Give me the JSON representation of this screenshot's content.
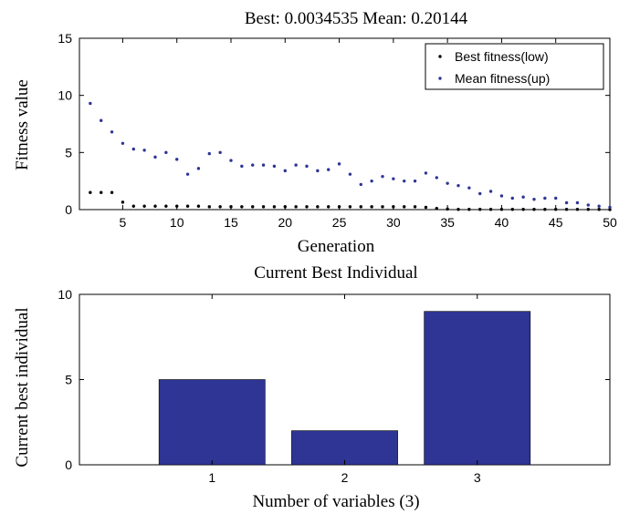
{
  "chart_data": [
    {
      "type": "scatter",
      "title": "Best: 0.0034535 Mean: 0.20144",
      "xlabel": "Generation",
      "ylabel": "Fitness value",
      "xlim": [
        1,
        50
      ],
      "ylim": [
        0,
        15
      ],
      "xticks": [
        5,
        10,
        15,
        20,
        25,
        30,
        35,
        40,
        45,
        50
      ],
      "yticks": [
        0,
        5,
        10,
        15
      ],
      "legend_position": "top-right",
      "grid": false,
      "series": [
        {
          "name": "Best fitness(low)",
          "color": "#000000",
          "x": [
            2,
            3,
            4,
            5,
            6,
            7,
            8,
            9,
            10,
            11,
            12,
            13,
            14,
            15,
            16,
            17,
            18,
            19,
            20,
            21,
            22,
            23,
            24,
            25,
            26,
            27,
            28,
            29,
            30,
            31,
            32,
            33,
            34,
            35,
            36,
            37,
            38,
            39,
            40,
            41,
            42,
            43,
            44,
            45,
            46,
            47,
            48,
            49,
            50
          ],
          "y": [
            1.5,
            1.5,
            1.5,
            0.65,
            0.3,
            0.3,
            0.3,
            0.3,
            0.3,
            0.3,
            0.3,
            0.25,
            0.25,
            0.25,
            0.25,
            0.25,
            0.25,
            0.25,
            0.25,
            0.25,
            0.25,
            0.25,
            0.25,
            0.25,
            0.25,
            0.25,
            0.25,
            0.25,
            0.25,
            0.25,
            0.25,
            0.2,
            0.1,
            0.05,
            0.02,
            0.02,
            0.02,
            0.02,
            0.02,
            0.02,
            0.02,
            0.02,
            0.02,
            0.02,
            0.02,
            0.02,
            0.02,
            0.02,
            0.0034535
          ]
        },
        {
          "name": "Mean fitness(up)",
          "color": "#2e3594",
          "x": [
            2,
            3,
            4,
            5,
            6,
            7,
            8,
            9,
            10,
            11,
            12,
            13,
            14,
            15,
            16,
            17,
            18,
            19,
            20,
            21,
            22,
            23,
            24,
            25,
            26,
            27,
            28,
            29,
            30,
            31,
            32,
            33,
            34,
            35,
            36,
            37,
            38,
            39,
            40,
            41,
            42,
            43,
            44,
            45,
            46,
            47,
            48,
            49,
            50
          ],
          "y": [
            9.3,
            7.8,
            6.8,
            5.8,
            5.3,
            5.2,
            4.6,
            5.0,
            4.4,
            3.1,
            3.6,
            4.9,
            5.0,
            4.3,
            3.8,
            3.9,
            3.9,
            3.8,
            3.4,
            3.9,
            3.8,
            3.4,
            3.5,
            4.0,
            3.1,
            2.2,
            2.5,
            2.9,
            2.7,
            2.5,
            2.5,
            3.2,
            2.8,
            2.3,
            2.1,
            1.9,
            1.4,
            1.6,
            1.2,
            1.0,
            1.1,
            0.9,
            1.0,
            1.0,
            0.6,
            0.6,
            0.4,
            0.3,
            0.20144
          ]
        }
      ]
    },
    {
      "type": "bar",
      "title": "Current Best Individual",
      "xlabel": "Number of variables (3)",
      "ylabel": "Current best individual",
      "xlim": [
        0,
        4
      ],
      "ylim": [
        0,
        10
      ],
      "yticks": [
        0,
        5,
        10
      ],
      "grid": false,
      "categories": [
        "1",
        "2",
        "3"
      ],
      "values": [
        5,
        2,
        9
      ],
      "bar_color": "#2e3594"
    }
  ]
}
